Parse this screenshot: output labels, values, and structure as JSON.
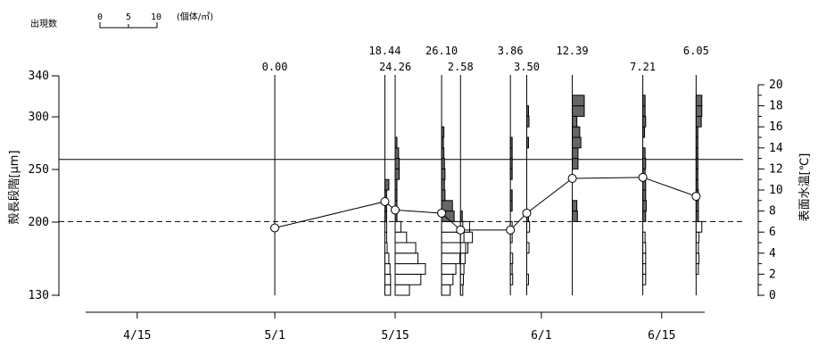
{
  "chart_data": {
    "type": "line",
    "legend": {
      "label": "出現数",
      "ticks": [
        "0",
        "5",
        "10"
      ],
      "unit": "(個体/㎡)"
    },
    "x_axis": {
      "tick_labels": [
        "4/15",
        "5/1",
        "5/15",
        "6/1",
        "6/15"
      ],
      "ticks": [
        106,
        122,
        136,
        153,
        167
      ],
      "range": [
        100,
        172
      ]
    },
    "y_left": {
      "label": "殻長段階[μm]",
      "tick_labels": [
        "340",
        "300",
        "250",
        "200",
        "130"
      ],
      "scale": [
        {
          "value": 130,
          "level": 0
        },
        {
          "value": 200,
          "level": 7
        },
        {
          "value": 250,
          "level": 12
        },
        {
          "value": 300,
          "level": 17
        },
        {
          "value": 340,
          "level": 21
        }
      ]
    },
    "y_right": {
      "label": "表面水温[℃]",
      "range": [
        0,
        20
      ],
      "tick_labels": [
        "0",
        "2",
        "4",
        "6",
        "8",
        "10",
        "12",
        "14",
        "16",
        "18",
        "20"
      ]
    },
    "reference_lines": [
      {
        "level": 12.9,
        "style": "solid"
      },
      {
        "level": 7.0,
        "style": "dashed"
      }
    ],
    "samples": [
      {
        "date": 122,
        "total": "0.00",
        "label_row": 2,
        "bins": []
      },
      {
        "date": 134.8,
        "total": "18.44",
        "label_row": 1,
        "bins": [
          [
            0,
            1.0
          ],
          [
            1,
            1.0
          ],
          [
            2,
            0.9
          ],
          [
            3,
            0.7
          ],
          [
            4,
            0.4
          ],
          [
            5,
            0.3
          ],
          [
            6,
            0.2
          ],
          [
            7,
            0.2
          ],
          [
            8,
            0.2
          ],
          [
            9,
            0.1
          ],
          [
            10,
            0.7
          ]
        ]
      },
      {
        "date": 136,
        "total": "24.26",
        "label_row": 2,
        "bins": [
          [
            0,
            2.5
          ],
          [
            1,
            4.5
          ],
          [
            2,
            5.3
          ],
          [
            3,
            4.0
          ],
          [
            4,
            3.6
          ],
          [
            5,
            2.0
          ],
          [
            6,
            1.0
          ],
          [
            7,
            0.3
          ],
          [
            8,
            0.3
          ],
          [
            9,
            0.2
          ],
          [
            10,
            0.2
          ],
          [
            11,
            0.7
          ],
          [
            12,
            0.7
          ],
          [
            13,
            0.6
          ],
          [
            14,
            0.3
          ]
        ]
      },
      {
        "date": 141.4,
        "total": "26.10",
        "label_row": 1,
        "bins": [
          [
            0,
            1.5
          ],
          [
            1,
            2.0
          ],
          [
            2,
            2.5
          ],
          [
            3,
            3.2
          ],
          [
            4,
            4.6
          ],
          [
            5,
            5.4
          ],
          [
            6,
            4.9
          ],
          [
            7,
            2.2
          ],
          [
            8,
            1.9
          ],
          [
            9,
            0.6
          ],
          [
            10,
            0.5
          ],
          [
            11,
            0.6
          ],
          [
            12,
            0.5
          ],
          [
            13,
            0.4
          ],
          [
            14,
            0.3
          ],
          [
            15,
            0.4
          ]
        ]
      },
      {
        "date": 143.6,
        "total": "2.58",
        "label_row": 2,
        "bins": [
          [
            0,
            0.4
          ],
          [
            1,
            0.5
          ],
          [
            2,
            0.6
          ],
          [
            3,
            0.8
          ],
          [
            4,
            0.9
          ],
          [
            5,
            0.6
          ],
          [
            6,
            0.4
          ],
          [
            7,
            0.3
          ]
        ]
      },
      {
        "date": 149.4,
        "total": "3.86",
        "label_row": 1,
        "bins": [
          [
            1,
            0.4
          ],
          [
            2,
            0.3
          ],
          [
            3,
            0.4
          ],
          [
            5,
            0.3
          ],
          [
            6,
            0.2
          ],
          [
            8,
            0.3
          ],
          [
            9,
            0.3
          ],
          [
            11,
            0.2
          ],
          [
            12,
            0.2
          ],
          [
            13,
            0.3
          ],
          [
            14,
            0.2
          ]
        ]
      },
      {
        "date": 151.3,
        "total": "3.50",
        "label_row": 2,
        "bins": [
          [
            1,
            0.2
          ],
          [
            4,
            0.4
          ],
          [
            6,
            0.5
          ],
          [
            7,
            0.3
          ],
          [
            14,
            0.3
          ],
          [
            16,
            0.4
          ],
          [
            17,
            0.3
          ]
        ]
      },
      {
        "date": 156.6,
        "total": "12.39",
        "label_row": 1,
        "bins": [
          [
            7,
            0.9
          ],
          [
            8,
            0.8
          ],
          [
            12,
            1.0
          ],
          [
            13,
            1.0
          ],
          [
            14,
            1.5
          ],
          [
            15,
            1.3
          ],
          [
            16,
            0.8
          ],
          [
            17,
            2.1
          ],
          [
            18,
            2.1
          ]
        ]
      },
      {
        "date": 164.8,
        "total": "7.21",
        "label_row": 2,
        "bins": [
          [
            1,
            0.5
          ],
          [
            2,
            0.5
          ],
          [
            3,
            0.5
          ],
          [
            4,
            0.5
          ],
          [
            5,
            0.4
          ],
          [
            7,
            0.5
          ],
          [
            8,
            0.6
          ],
          [
            9,
            0.5
          ],
          [
            10,
            0.5
          ],
          [
            11,
            0.4
          ],
          [
            12,
            0.5
          ],
          [
            13,
            0.4
          ],
          [
            15,
            0.3
          ],
          [
            16,
            0.5
          ],
          [
            17,
            0.4
          ],
          [
            18,
            0.4
          ]
        ]
      },
      {
        "date": 171,
        "total": "6.05",
        "label_row": 1,
        "bins": [
          [
            2,
            0.4
          ],
          [
            3,
            0.5
          ],
          [
            4,
            0.4
          ],
          [
            5,
            0.5
          ],
          [
            6,
            1.0
          ],
          [
            7,
            0.4
          ],
          [
            8,
            0.4
          ],
          [
            9,
            0.4
          ],
          [
            10,
            0.3
          ],
          [
            11,
            0.3
          ],
          [
            12,
            0.3
          ],
          [
            13,
            0.3
          ],
          [
            14,
            0.3
          ],
          [
            15,
            0.3
          ],
          [
            16,
            0.9
          ],
          [
            17,
            1.0
          ],
          [
            18,
            1.0
          ]
        ]
      }
    ],
    "temperature_series": {
      "x": [
        122,
        134.8,
        136,
        141.4,
        143.6,
        149.4,
        151.3,
        156.6,
        164.8,
        171
      ],
      "y": [
        6.4,
        8.9,
        8.1,
        7.8,
        6.2,
        6.2,
        7.8,
        11.1,
        11.2,
        9.4
      ]
    }
  }
}
